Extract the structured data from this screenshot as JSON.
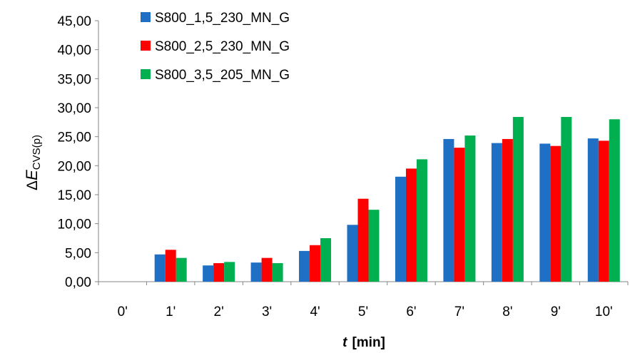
{
  "chart_data": {
    "type": "bar",
    "categories": [
      "0'",
      "1'",
      "2'",
      "3'",
      "4'",
      "5'",
      "6'",
      "7'",
      "8'",
      "9'",
      "10'"
    ],
    "series": [
      {
        "name": "S800_1,5_230_MN_G",
        "color": "#1F6FC5",
        "values": [
          0,
          4.7,
          2.8,
          3.3,
          5.3,
          9.8,
          18.1,
          24.6,
          23.9,
          23.8,
          24.7
        ]
      },
      {
        "name": "S800_2,5_230_MN_G",
        "color": "#FF0000",
        "values": [
          0,
          5.5,
          3.2,
          4.1,
          6.3,
          14.3,
          19.5,
          23.1,
          24.6,
          23.4,
          24.3
        ]
      },
      {
        "name": "S800_3,5_205_MN_G",
        "color": "#00B050",
        "values": [
          0,
          4.1,
          3.4,
          3.2,
          7.5,
          12.4,
          21.1,
          25.2,
          28.4,
          28.4,
          28.0
        ]
      }
    ],
    "y_ticks": [
      "0,00",
      "5,00",
      "10,00",
      "15,00",
      "20,00",
      "25,00",
      "30,00",
      "35,00",
      "40,00",
      "45,00"
    ],
    "ylim": [
      0,
      45
    ],
    "ylabel": {
      "delta": "Δ",
      "E": "E",
      "sub": "CVS(p)"
    },
    "xlabel": {
      "var": "t",
      "unit": "[min]"
    },
    "legend_position": "top-left",
    "grid": false
  }
}
